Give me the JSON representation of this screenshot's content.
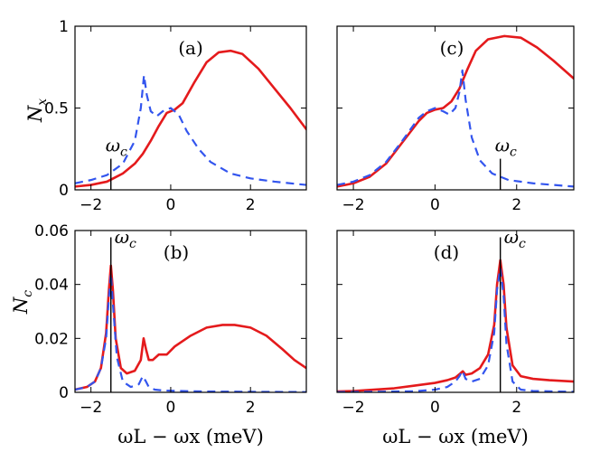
{
  "chart_data": [
    {
      "type": "line",
      "panel_label": "(a)",
      "ylabel": "N",
      "ylabel_sub": "x",
      "xlim": [
        -2.4,
        3.4
      ],
      "ylim": [
        0,
        1
      ],
      "xticks": [
        -2,
        0,
        2
      ],
      "xtick_labels": [
        "−2",
        "0",
        "2"
      ],
      "yticks": [
        0,
        0.5,
        1
      ],
      "ytick_labels": [
        "0",
        "0.5",
        "1"
      ],
      "marker": {
        "label": "ω",
        "sub": "c",
        "x": -1.5,
        "y_top": 0.19
      },
      "series": [
        {
          "name": "solid",
          "color": "#e41a1c",
          "style": "solid",
          "x": [
            -2.4,
            -2.0,
            -1.6,
            -1.2,
            -0.9,
            -0.7,
            -0.5,
            -0.3,
            -0.1,
            0.1,
            0.3,
            0.6,
            0.9,
            1.2,
            1.5,
            1.8,
            2.2,
            2.6,
            3.0,
            3.4
          ],
          "y": [
            0.02,
            0.03,
            0.05,
            0.1,
            0.16,
            0.22,
            0.3,
            0.39,
            0.47,
            0.49,
            0.53,
            0.66,
            0.78,
            0.84,
            0.85,
            0.83,
            0.74,
            0.62,
            0.5,
            0.37
          ]
        },
        {
          "name": "dashed",
          "color": "#3355ee",
          "style": "dashed",
          "x": [
            -2.4,
            -2.0,
            -1.6,
            -1.2,
            -0.9,
            -0.75,
            -0.67,
            -0.6,
            -0.5,
            -0.35,
            -0.2,
            0.0,
            0.2,
            0.4,
            0.7,
            1.0,
            1.5,
            2.0,
            2.6,
            3.4
          ],
          "y": [
            0.04,
            0.06,
            0.09,
            0.16,
            0.3,
            0.5,
            0.7,
            0.58,
            0.48,
            0.45,
            0.48,
            0.5,
            0.46,
            0.36,
            0.25,
            0.17,
            0.1,
            0.07,
            0.05,
            0.03
          ]
        }
      ]
    },
    {
      "type": "line",
      "panel_label": "(c)",
      "xlim": [
        -2.4,
        3.4
      ],
      "ylim": [
        0,
        1
      ],
      "xticks": [
        -2,
        0,
        2
      ],
      "xtick_labels": [
        "−2",
        "0",
        "2"
      ],
      "yticks": [
        0,
        0.5,
        1
      ],
      "marker": {
        "label": "ω",
        "sub": "c",
        "x": 1.6,
        "y_top": 0.19
      },
      "series": [
        {
          "name": "solid",
          "color": "#e41a1c",
          "style": "solid",
          "x": [
            -2.4,
            -2.0,
            -1.6,
            -1.2,
            -0.8,
            -0.4,
            -0.2,
            0.0,
            0.2,
            0.4,
            0.6,
            0.8,
            1.0,
            1.3,
            1.7,
            2.1,
            2.5,
            2.9,
            3.4
          ],
          "y": [
            0.02,
            0.04,
            0.08,
            0.16,
            0.29,
            0.42,
            0.47,
            0.49,
            0.5,
            0.54,
            0.62,
            0.74,
            0.85,
            0.92,
            0.94,
            0.93,
            0.87,
            0.79,
            0.68
          ]
        },
        {
          "name": "dashed",
          "color": "#3355ee",
          "style": "dashed",
          "x": [
            -2.4,
            -2.0,
            -1.6,
            -1.2,
            -0.8,
            -0.4,
            -0.2,
            0.0,
            0.2,
            0.35,
            0.5,
            0.6,
            0.67,
            0.75,
            0.9,
            1.1,
            1.4,
            1.8,
            2.4,
            3.4
          ],
          "y": [
            0.03,
            0.05,
            0.09,
            0.17,
            0.3,
            0.44,
            0.48,
            0.5,
            0.48,
            0.46,
            0.5,
            0.6,
            0.73,
            0.55,
            0.32,
            0.18,
            0.1,
            0.06,
            0.04,
            0.02
          ]
        }
      ]
    },
    {
      "type": "line",
      "panel_label": "(b)",
      "ylabel": "N",
      "ylabel_sub": "c",
      "xlim": [
        -2.4,
        3.4
      ],
      "ylim": [
        0,
        0.06
      ],
      "xticks": [
        -2,
        0,
        2
      ],
      "xtick_labels": [
        "−2",
        "0",
        "2"
      ],
      "yticks": [
        0,
        0.02,
        0.04,
        0.06
      ],
      "ytick_labels": [
        "0",
        "0.02",
        "0.04",
        "0.06"
      ],
      "xlabel": "ωL − ωx (meV)",
      "marker": {
        "label": "ω",
        "sub": "c",
        "x": -1.5,
        "y_top": 0.0575
      },
      "series": [
        {
          "name": "solid",
          "color": "#e41a1c",
          "style": "solid",
          "x": [
            -2.4,
            -2.1,
            -1.9,
            -1.75,
            -1.62,
            -1.55,
            -1.5,
            -1.45,
            -1.38,
            -1.25,
            -1.1,
            -0.9,
            -0.75,
            -0.68,
            -0.62,
            -0.55,
            -0.45,
            -0.3,
            -0.1,
            0.1,
            0.5,
            0.9,
            1.3,
            1.6,
            2.0,
            2.4,
            2.8,
            3.1,
            3.4
          ],
          "y": [
            0.001,
            0.002,
            0.004,
            0.009,
            0.022,
            0.038,
            0.047,
            0.038,
            0.02,
            0.009,
            0.007,
            0.008,
            0.012,
            0.02,
            0.016,
            0.012,
            0.012,
            0.014,
            0.014,
            0.017,
            0.021,
            0.024,
            0.025,
            0.025,
            0.024,
            0.021,
            0.016,
            0.012,
            0.009
          ]
        },
        {
          "name": "dashed",
          "color": "#3355ee",
          "style": "dashed",
          "x": [
            -2.4,
            -2.1,
            -1.9,
            -1.75,
            -1.62,
            -1.55,
            -1.5,
            -1.45,
            -1.35,
            -1.2,
            -1.0,
            -0.8,
            -0.7,
            -0.62,
            -0.55,
            -0.4,
            -0.2,
            0.2,
            1.0,
            2.0,
            3.4
          ],
          "y": [
            0.001,
            0.002,
            0.004,
            0.009,
            0.02,
            0.035,
            0.044,
            0.033,
            0.013,
            0.004,
            0.002,
            0.003,
            0.006,
            0.004,
            0.002,
            0.001,
            0.0007,
            0.0005,
            0.0003,
            0.0002,
            0.0001
          ]
        }
      ]
    },
    {
      "type": "line",
      "panel_label": "(d)",
      "xlim": [
        -2.4,
        3.4
      ],
      "ylim": [
        0,
        0.06
      ],
      "xticks": [
        -2,
        0,
        2
      ],
      "xtick_labels": [
        "−2",
        "0",
        "2"
      ],
      "yticks": [
        0,
        0.02,
        0.04,
        0.06
      ],
      "xlabel": "ωL − ωx (meV)",
      "marker": {
        "label": "ω",
        "sub": "c",
        "x": 1.6,
        "y_top": 0.0575
      },
      "series": [
        {
          "name": "solid",
          "color": "#e41a1c",
          "style": "solid",
          "x": [
            -2.4,
            -2.0,
            -1.5,
            -1.0,
            -0.5,
            0.0,
            0.3,
            0.5,
            0.62,
            0.68,
            0.75,
            0.9,
            1.1,
            1.3,
            1.45,
            1.52,
            1.6,
            1.68,
            1.75,
            1.9,
            2.1,
            2.4,
            2.8,
            3.4
          ],
          "y": [
            0.0003,
            0.0005,
            0.001,
            0.0015,
            0.0025,
            0.0035,
            0.0045,
            0.0055,
            0.007,
            0.0078,
            0.0065,
            0.007,
            0.009,
            0.014,
            0.025,
            0.04,
            0.049,
            0.04,
            0.024,
            0.01,
            0.006,
            0.005,
            0.0045,
            0.004
          ]
        },
        {
          "name": "dashed",
          "color": "#3355ee",
          "style": "dashed",
          "x": [
            -2.4,
            -1.5,
            -0.5,
            0.0,
            0.3,
            0.5,
            0.6,
            0.67,
            0.75,
            0.9,
            1.1,
            1.3,
            1.45,
            1.52,
            1.6,
            1.68,
            1.75,
            1.9,
            2.1,
            2.4,
            3.4
          ],
          "y": [
            0.0001,
            0.0002,
            0.0004,
            0.001,
            0.002,
            0.004,
            0.006,
            0.008,
            0.005,
            0.004,
            0.005,
            0.01,
            0.022,
            0.038,
            0.046,
            0.036,
            0.018,
            0.004,
            0.001,
            0.0005,
            0.0002
          ]
        }
      ]
    }
  ]
}
